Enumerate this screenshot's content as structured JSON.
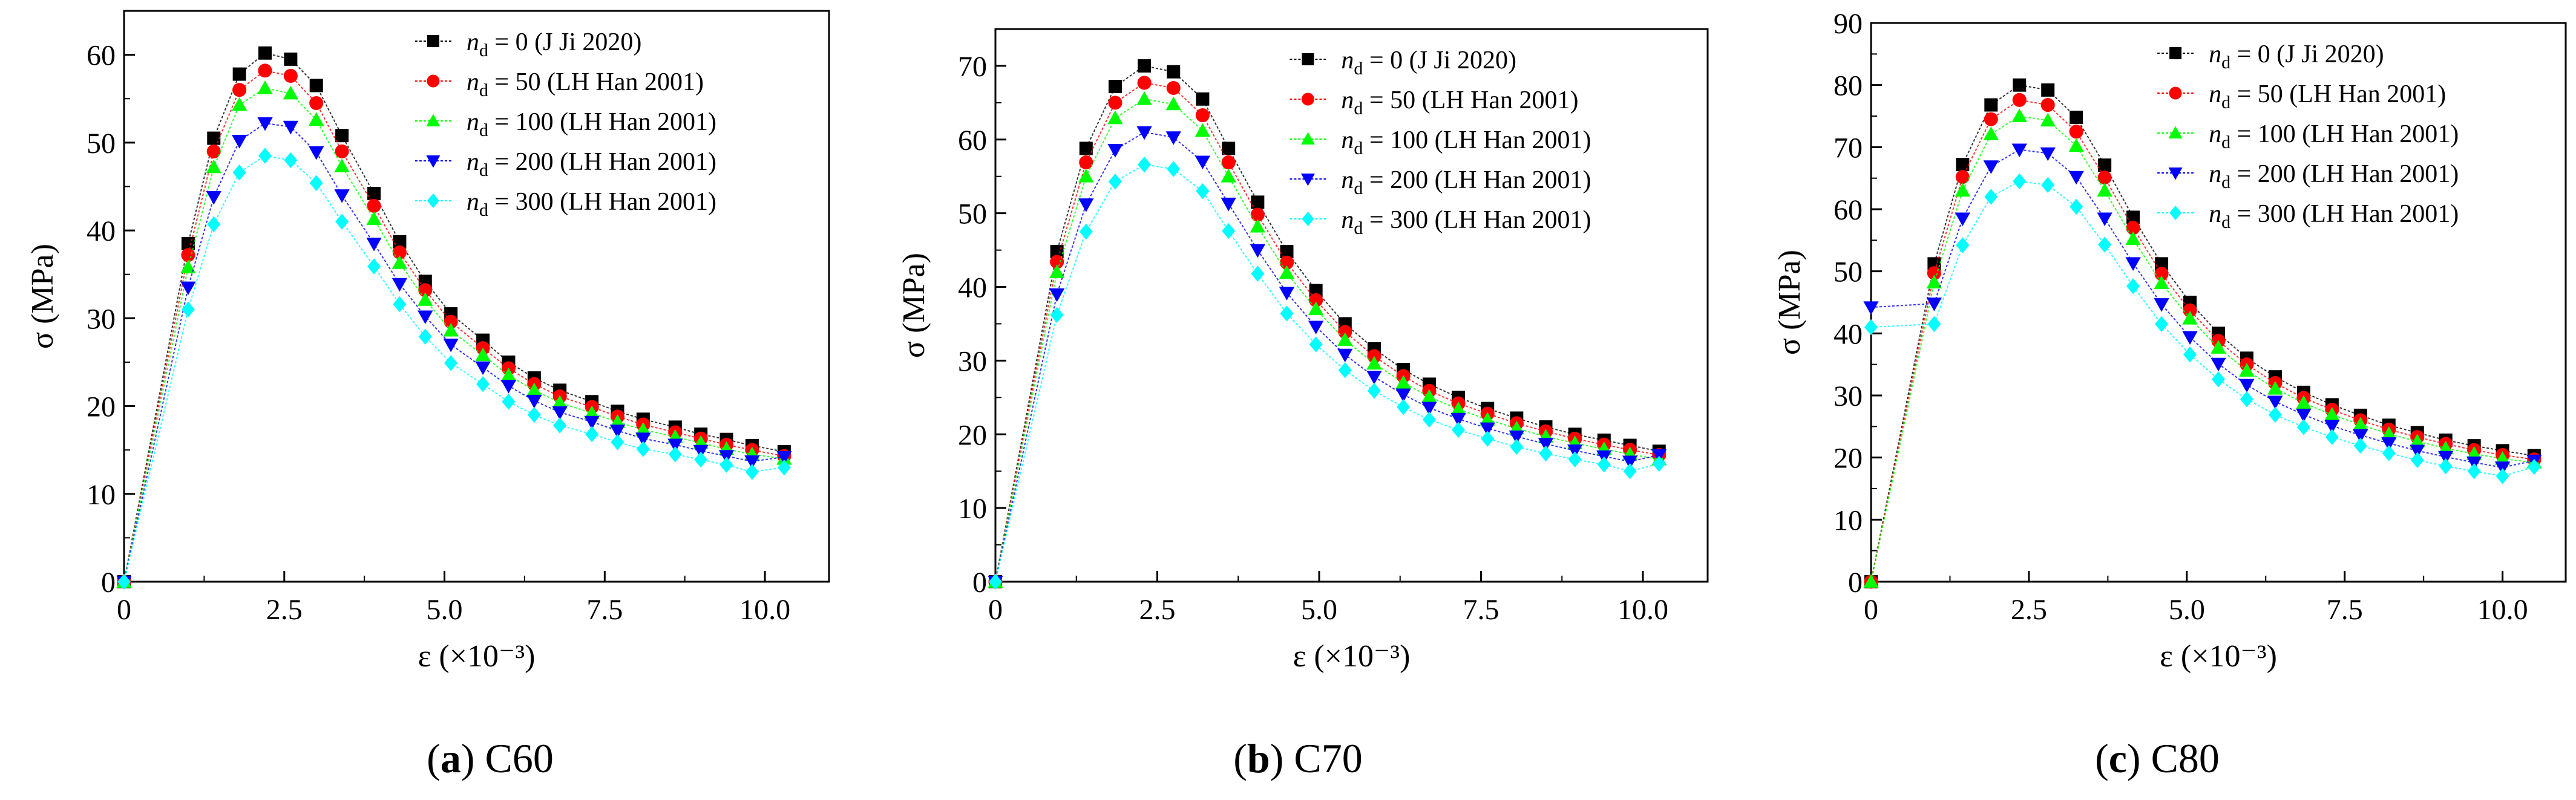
{
  "figure": {
    "captions": [
      {
        "letter": "a",
        "text": "C60"
      },
      {
        "letter": "b",
        "text": "C70"
      },
      {
        "letter": "c",
        "text": "C80"
      }
    ]
  },
  "chart_data": [
    {
      "type": "scatter",
      "title": "C60",
      "xlabel": "ε (×10⁻³)",
      "ylabel": "σ (MPa)",
      "xlim": [
        0,
        11.0
      ],
      "ylim": [
        0,
        65
      ],
      "xticks": [
        0,
        2.5,
        5.0,
        7.5,
        10.0
      ],
      "xtick_labels": [
        "0",
        "2.5",
        "5.0",
        "7.5",
        "10.0"
      ],
      "yticks": [
        0,
        10,
        20,
        30,
        40,
        50,
        60
      ],
      "ytick_labels": [
        "0",
        "10",
        "20",
        "30",
        "40",
        "50",
        "60"
      ],
      "x": [
        0,
        1.0,
        1.4,
        1.8,
        2.2,
        2.6,
        3.0,
        3.4,
        3.9,
        4.3,
        4.7,
        5.1,
        5.6,
        6.0,
        6.4,
        6.8,
        7.3,
        7.7,
        8.1,
        8.6,
        9.0,
        9.4,
        9.8,
        10.3
      ],
      "legend_position": "top-right",
      "series": [
        {
          "name": "n_d = 0  (J Ji 2020)",
          "sub": "d",
          "label_rest": " = 0  (J Ji 2020)",
          "marker": "square",
          "color": "#000000",
          "values": [
            0,
            38.5,
            50.5,
            57.8,
            60.2,
            59.5,
            56.5,
            50.8,
            44.2,
            38.7,
            34.2,
            30.5,
            27.5,
            25.0,
            23.2,
            21.8,
            20.5,
            19.4,
            18.5,
            17.6,
            16.8,
            16.2,
            15.5,
            14.8
          ]
        },
        {
          "name": "n_d = 50  (LH Han 2001)",
          "sub": "d",
          "label_rest": " = 50  (LH Han 2001)",
          "marker": "circle",
          "color": "#ff0000",
          "values": [
            0,
            37.2,
            49.0,
            56.0,
            58.2,
            57.6,
            54.5,
            49.0,
            42.8,
            37.5,
            33.2,
            29.6,
            26.6,
            24.3,
            22.5,
            21.1,
            19.9,
            18.8,
            17.9,
            17.0,
            16.3,
            15.6,
            15.0,
            14.3
          ]
        },
        {
          "name": "n_d = 100  (LH Han 2001)",
          "sub": "d",
          "label_rest": " = 100  (LH Han 2001)",
          "marker": "triangle-up",
          "color": "#00ff00",
          "values": [
            0,
            35.8,
            47.2,
            54.3,
            56.2,
            55.6,
            52.6,
            47.3,
            41.3,
            36.3,
            32.1,
            28.6,
            25.8,
            23.5,
            21.8,
            20.4,
            19.2,
            18.2,
            17.3,
            16.5,
            15.8,
            15.1,
            14.5,
            14.0
          ]
        },
        {
          "name": "n_d = 200  (LH Han 2001)",
          "sub": "d",
          "label_rest": " = 200  (LH Han 2001)",
          "marker": "triangle-down",
          "color": "#0000ff",
          "values": [
            0,
            33.5,
            43.8,
            50.2,
            52.2,
            51.8,
            48.9,
            44.0,
            38.5,
            33.9,
            30.2,
            27.0,
            24.4,
            22.3,
            20.6,
            19.3,
            18.2,
            17.2,
            16.3,
            15.6,
            14.9,
            14.3,
            13.7,
            14.2
          ]
        },
        {
          "name": "n_d = 300  (LH Han 2001)",
          "sub": "d",
          "label_rest": " = 300  (LH Han 2001)",
          "marker": "diamond",
          "color": "#00ffff",
          "values": [
            0,
            31.0,
            40.7,
            46.6,
            48.5,
            48.0,
            45.4,
            41.0,
            35.9,
            31.6,
            27.9,
            24.9,
            22.5,
            20.5,
            19.0,
            17.8,
            16.8,
            15.9,
            15.1,
            14.5,
            13.9,
            13.3,
            12.5,
            13.0
          ]
        }
      ]
    },
    {
      "type": "scatter",
      "title": "C70",
      "xlabel": "ε (×10⁻³)",
      "ylabel": "σ (MPa)",
      "xlim": [
        0,
        11.0
      ],
      "ylim": [
        0,
        75
      ],
      "xticks": [
        0,
        2.5,
        5.0,
        7.5,
        10.0
      ],
      "xtick_labels": [
        "0",
        "2.5",
        "5.0",
        "7.5",
        "10.0"
      ],
      "yticks": [
        0,
        10,
        20,
        30,
        40,
        50,
        60,
        70
      ],
      "ytick_labels": [
        "0",
        "10",
        "20",
        "30",
        "40",
        "50",
        "60",
        "70"
      ],
      "x": [
        0,
        0.95,
        1.4,
        1.85,
        2.3,
        2.75,
        3.2,
        3.6,
        4.05,
        4.5,
        4.95,
        5.4,
        5.85,
        6.3,
        6.7,
        7.15,
        7.6,
        8.05,
        8.5,
        8.95,
        9.4,
        9.8,
        10.25
      ],
      "legend_position": "top-right",
      "series": [
        {
          "name": "n_d = 0  (J Ji 2020)",
          "sub": "d",
          "label_rest": " = 0  (J Ji 2020)",
          "marker": "square",
          "color": "#000000",
          "values": [
            0,
            44.8,
            58.8,
            67.2,
            70.0,
            69.2,
            65.5,
            58.8,
            51.5,
            44.8,
            39.5,
            35.0,
            31.6,
            28.8,
            26.8,
            25.0,
            23.5,
            22.2,
            21.0,
            20.0,
            19.2,
            18.5,
            17.7
          ]
        },
        {
          "name": "n_d = 50  (LH Han 2001)",
          "sub": "d",
          "label_rest": " = 50  (LH Han 2001)",
          "marker": "circle",
          "color": "#ff0000",
          "values": [
            0,
            43.4,
            56.9,
            65.0,
            67.7,
            67.0,
            63.3,
            56.9,
            49.8,
            43.3,
            38.2,
            33.9,
            30.6,
            27.9,
            25.9,
            24.2,
            22.8,
            21.5,
            20.4,
            19.4,
            18.6,
            17.9,
            17.2
          ]
        },
        {
          "name": "n_d = 100  (LH Han 2001)",
          "sub": "d",
          "label_rest": " = 100  (LH Han 2001)",
          "marker": "triangle-up",
          "color": "#00ff00",
          "values": [
            0,
            42.0,
            55.0,
            62.9,
            65.5,
            64.8,
            61.2,
            55.0,
            48.2,
            41.9,
            37.0,
            32.8,
            29.6,
            27.0,
            25.1,
            23.4,
            22.0,
            20.8,
            19.7,
            18.8,
            18.0,
            17.3,
            16.6
          ]
        },
        {
          "name": "n_d = 200  (LH Han 2001)",
          "sub": "d",
          "label_rest": " = 200  (LH Han 2001)",
          "marker": "triangle-down",
          "color": "#0000ff",
          "values": [
            0,
            39.0,
            51.2,
            58.6,
            61.0,
            60.3,
            57.0,
            51.3,
            45.0,
            39.2,
            34.6,
            30.8,
            27.8,
            25.4,
            23.6,
            22.1,
            20.8,
            19.7,
            18.7,
            17.8,
            17.0,
            16.3,
            17.2
          ]
        },
        {
          "name": "n_d = 300  (LH Han 2001)",
          "sub": "d",
          "label_rest": " = 300  (LH Han 2001)",
          "marker": "diamond",
          "color": "#00ffff",
          "values": [
            0,
            36.2,
            47.5,
            54.3,
            56.6,
            56.0,
            53.0,
            47.6,
            41.8,
            36.4,
            32.2,
            28.7,
            25.9,
            23.7,
            22.0,
            20.6,
            19.4,
            18.3,
            17.4,
            16.6,
            15.9,
            15.0,
            16.0
          ]
        }
      ]
    },
    {
      "type": "scatter",
      "title": "C80",
      "xlabel": "ε (×10⁻³)",
      "ylabel": "σ (MPa)",
      "xlim": [
        0,
        11.0
      ],
      "ylim": [
        0,
        90
      ],
      "xticks": [
        0,
        2.5,
        5.0,
        7.5,
        10.0
      ],
      "xtick_labels": [
        "0",
        "2.5",
        "5.0",
        "7.5",
        "10.0"
      ],
      "yticks": [
        0,
        10,
        20,
        30,
        40,
        50,
        60,
        70,
        80,
        90
      ],
      "ytick_labels": [
        "0",
        "10",
        "20",
        "30",
        "40",
        "50",
        "60",
        "70",
        "80",
        "90"
      ],
      "x": [
        0,
        1.0,
        1.45,
        1.9,
        2.35,
        2.8,
        3.25,
        3.7,
        4.15,
        4.6,
        5.05,
        5.5,
        5.95,
        6.4,
        6.85,
        7.3,
        7.75,
        8.2,
        8.65,
        9.1,
        9.55,
        10.0,
        10.5
      ],
      "legend_position": "top-right",
      "series": [
        {
          "name": "n_d = 0  (J Ji 2020)",
          "sub": "d",
          "label_rest": " = 0  (J Ji 2020)",
          "marker": "square",
          "color": "#000000",
          "values": [
            0,
            51.2,
            67.2,
            76.8,
            80.0,
            79.2,
            74.8,
            67.1,
            58.7,
            51.2,
            45.0,
            40.0,
            36.0,
            33.0,
            30.5,
            28.5,
            26.8,
            25.2,
            24.0,
            22.8,
            21.9,
            21.1,
            20.3
          ]
        },
        {
          "name": "n_d = 50  (LH Han 2001)",
          "sub": "d",
          "label_rest": " = 50  (LH Han 2001)",
          "marker": "circle",
          "color": "#ff0000",
          "values": [
            0,
            49.7,
            65.2,
            74.5,
            77.6,
            76.8,
            72.5,
            65.1,
            57.0,
            49.6,
            43.7,
            38.8,
            35.0,
            32.0,
            29.6,
            27.7,
            26.0,
            24.5,
            23.3,
            22.2,
            21.2,
            20.4,
            19.7
          ]
        },
        {
          "name": "n_d = 100  (LH Han 2001)",
          "sub": "d",
          "label_rest": " = 100  (LH Han 2001)",
          "marker": "triangle-up",
          "color": "#00ff00",
          "values": [
            0,
            48.2,
            63.0,
            72.1,
            75.0,
            74.3,
            70.2,
            63.0,
            55.2,
            48.1,
            42.4,
            37.7,
            34.0,
            31.1,
            28.8,
            26.9,
            25.3,
            23.8,
            22.6,
            21.5,
            20.6,
            19.8,
            19.2
          ]
        },
        {
          "name": "n_d = 200  (LH Han 2001)",
          "sub": "d",
          "label_rest": " = 200  (LH Han 2001)",
          "marker": "triangle-down",
          "color": "#0000ff",
          "values": [
            44.2,
            44.8,
            58.5,
            66.9,
            69.6,
            69.0,
            65.2,
            58.5,
            51.3,
            44.7,
            39.4,
            35.1,
            31.7,
            29.0,
            26.9,
            25.1,
            23.6,
            22.3,
            21.1,
            20.1,
            19.2,
            18.4,
            19.5
          ]
        },
        {
          "name": "n_d = 300  (LH Han 2001)",
          "sub": "d",
          "label_rest": " = 300  (LH Han 2001)",
          "marker": "diamond",
          "color": "#00ffff",
          "values": [
            41.0,
            41.5,
            54.2,
            62.0,
            64.5,
            63.9,
            60.4,
            54.3,
            47.6,
            41.5,
            36.6,
            32.6,
            29.4,
            26.9,
            24.9,
            23.3,
            21.9,
            20.7,
            19.6,
            18.6,
            17.8,
            17.0,
            18.5
          ]
        }
      ]
    }
  ]
}
